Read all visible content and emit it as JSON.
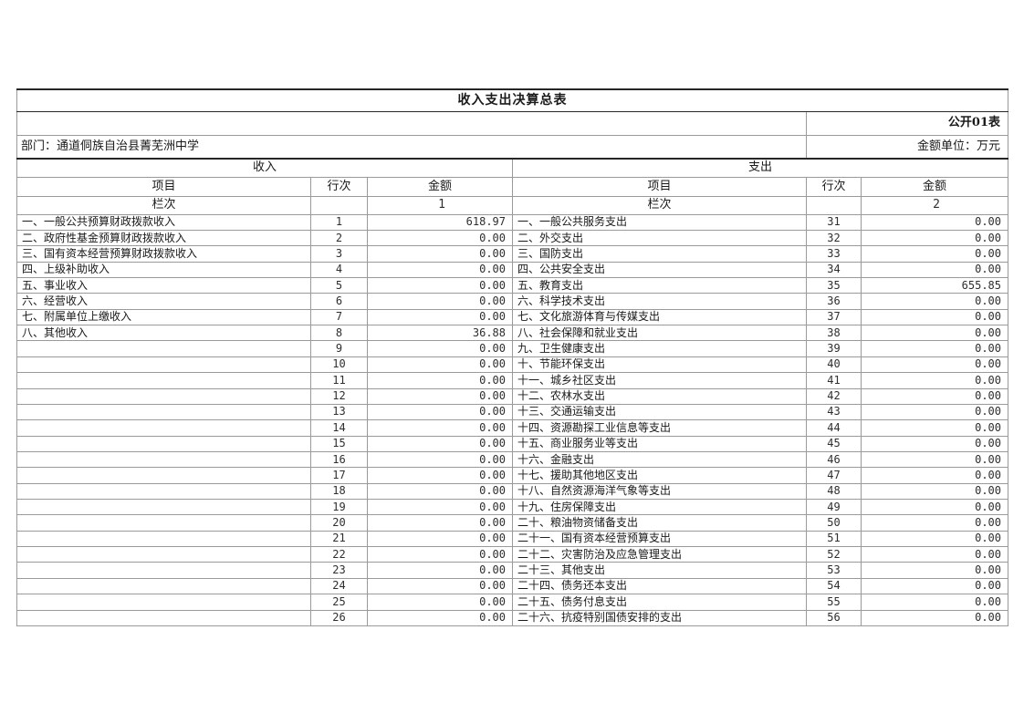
{
  "title": "收入支出决算总表",
  "meta": {
    "sheet_label": "公开01表",
    "department_label": "部门：通道侗族自治县菁芜洲中学",
    "unit_label": "金额单位：万元"
  },
  "colors": {
    "border_light": "#9a9a9a",
    "border_dark": "#262626",
    "text": "#1a1a1a",
    "background": "#ffffff"
  },
  "income": {
    "section_label": "收入",
    "col_item": "项目",
    "col_line": "行次",
    "col_amount": "金额",
    "lanci_label": "栏次",
    "column_no": "1",
    "rows": [
      {
        "item": "一、一般公共预算财政拨款收入",
        "line": "1",
        "amount": "618.97"
      },
      {
        "item": "二、政府性基金预算财政拨款收入",
        "line": "2",
        "amount": "0.00"
      },
      {
        "item": "三、国有资本经营预算财政拨款收入",
        "line": "3",
        "amount": "0.00"
      },
      {
        "item": "四、上级补助收入",
        "line": "4",
        "amount": "0.00"
      },
      {
        "item": "五、事业收入",
        "line": "5",
        "amount": "0.00"
      },
      {
        "item": "六、经营收入",
        "line": "6",
        "amount": "0.00"
      },
      {
        "item": "七、附属单位上缴收入",
        "line": "7",
        "amount": "0.00"
      },
      {
        "item": "八、其他收入",
        "line": "8",
        "amount": "36.88"
      },
      {
        "item": "",
        "line": "9",
        "amount": "0.00"
      },
      {
        "item": "",
        "line": "10",
        "amount": "0.00"
      },
      {
        "item": "",
        "line": "11",
        "amount": "0.00"
      },
      {
        "item": "",
        "line": "12",
        "amount": "0.00"
      },
      {
        "item": "",
        "line": "13",
        "amount": "0.00"
      },
      {
        "item": "",
        "line": "14",
        "amount": "0.00"
      },
      {
        "item": "",
        "line": "15",
        "amount": "0.00"
      },
      {
        "item": "",
        "line": "16",
        "amount": "0.00"
      },
      {
        "item": "",
        "line": "17",
        "amount": "0.00"
      },
      {
        "item": "",
        "line": "18",
        "amount": "0.00"
      },
      {
        "item": "",
        "line": "19",
        "amount": "0.00"
      },
      {
        "item": "",
        "line": "20",
        "amount": "0.00"
      },
      {
        "item": "",
        "line": "21",
        "amount": "0.00"
      },
      {
        "item": "",
        "line": "22",
        "amount": "0.00"
      },
      {
        "item": "",
        "line": "23",
        "amount": "0.00"
      },
      {
        "item": "",
        "line": "24",
        "amount": "0.00"
      },
      {
        "item": "",
        "line": "25",
        "amount": "0.00"
      },
      {
        "item": "",
        "line": "26",
        "amount": "0.00"
      }
    ]
  },
  "expense": {
    "section_label": "支出",
    "col_item": "项目",
    "col_line": "行次",
    "col_amount": "金额",
    "lanci_label": "栏次",
    "column_no": "2",
    "rows": [
      {
        "item": "一、一般公共服务支出",
        "line": "31",
        "amount": "0.00"
      },
      {
        "item": "二、外交支出",
        "line": "32",
        "amount": "0.00"
      },
      {
        "item": "三、国防支出",
        "line": "33",
        "amount": "0.00"
      },
      {
        "item": "四、公共安全支出",
        "line": "34",
        "amount": "0.00"
      },
      {
        "item": "五、教育支出",
        "line": "35",
        "amount": "655.85"
      },
      {
        "item": "六、科学技术支出",
        "line": "36",
        "amount": "0.00"
      },
      {
        "item": "七、文化旅游体育与传媒支出",
        "line": "37",
        "amount": "0.00"
      },
      {
        "item": "八、社会保障和就业支出",
        "line": "38",
        "amount": "0.00"
      },
      {
        "item": "九、卫生健康支出",
        "line": "39",
        "amount": "0.00"
      },
      {
        "item": "十、节能环保支出",
        "line": "40",
        "amount": "0.00"
      },
      {
        "item": "十一、城乡社区支出",
        "line": "41",
        "amount": "0.00"
      },
      {
        "item": "十二、农林水支出",
        "line": "42",
        "amount": "0.00"
      },
      {
        "item": "十三、交通运输支出",
        "line": "43",
        "amount": "0.00"
      },
      {
        "item": "十四、资源勘探工业信息等支出",
        "line": "44",
        "amount": "0.00"
      },
      {
        "item": "十五、商业服务业等支出",
        "line": "45",
        "amount": "0.00"
      },
      {
        "item": "十六、金融支出",
        "line": "46",
        "amount": "0.00"
      },
      {
        "item": "十七、援助其他地区支出",
        "line": "47",
        "amount": "0.00"
      },
      {
        "item": "十八、自然资源海洋气象等支出",
        "line": "48",
        "amount": "0.00"
      },
      {
        "item": "十九、住房保障支出",
        "line": "49",
        "amount": "0.00"
      },
      {
        "item": "二十、粮油物资储备支出",
        "line": "50",
        "amount": "0.00"
      },
      {
        "item": "二十一、国有资本经营预算支出",
        "line": "51",
        "amount": "0.00"
      },
      {
        "item": "二十二、灾害防治及应急管理支出",
        "line": "52",
        "amount": "0.00"
      },
      {
        "item": "二十三、其他支出",
        "line": "53",
        "amount": "0.00"
      },
      {
        "item": "二十四、债务还本支出",
        "line": "54",
        "amount": "0.00"
      },
      {
        "item": "二十五、债务付息支出",
        "line": "55",
        "amount": "0.00"
      },
      {
        "item": "二十六、抗疫特别国债安排的支出",
        "line": "56",
        "amount": "0.00"
      }
    ]
  }
}
